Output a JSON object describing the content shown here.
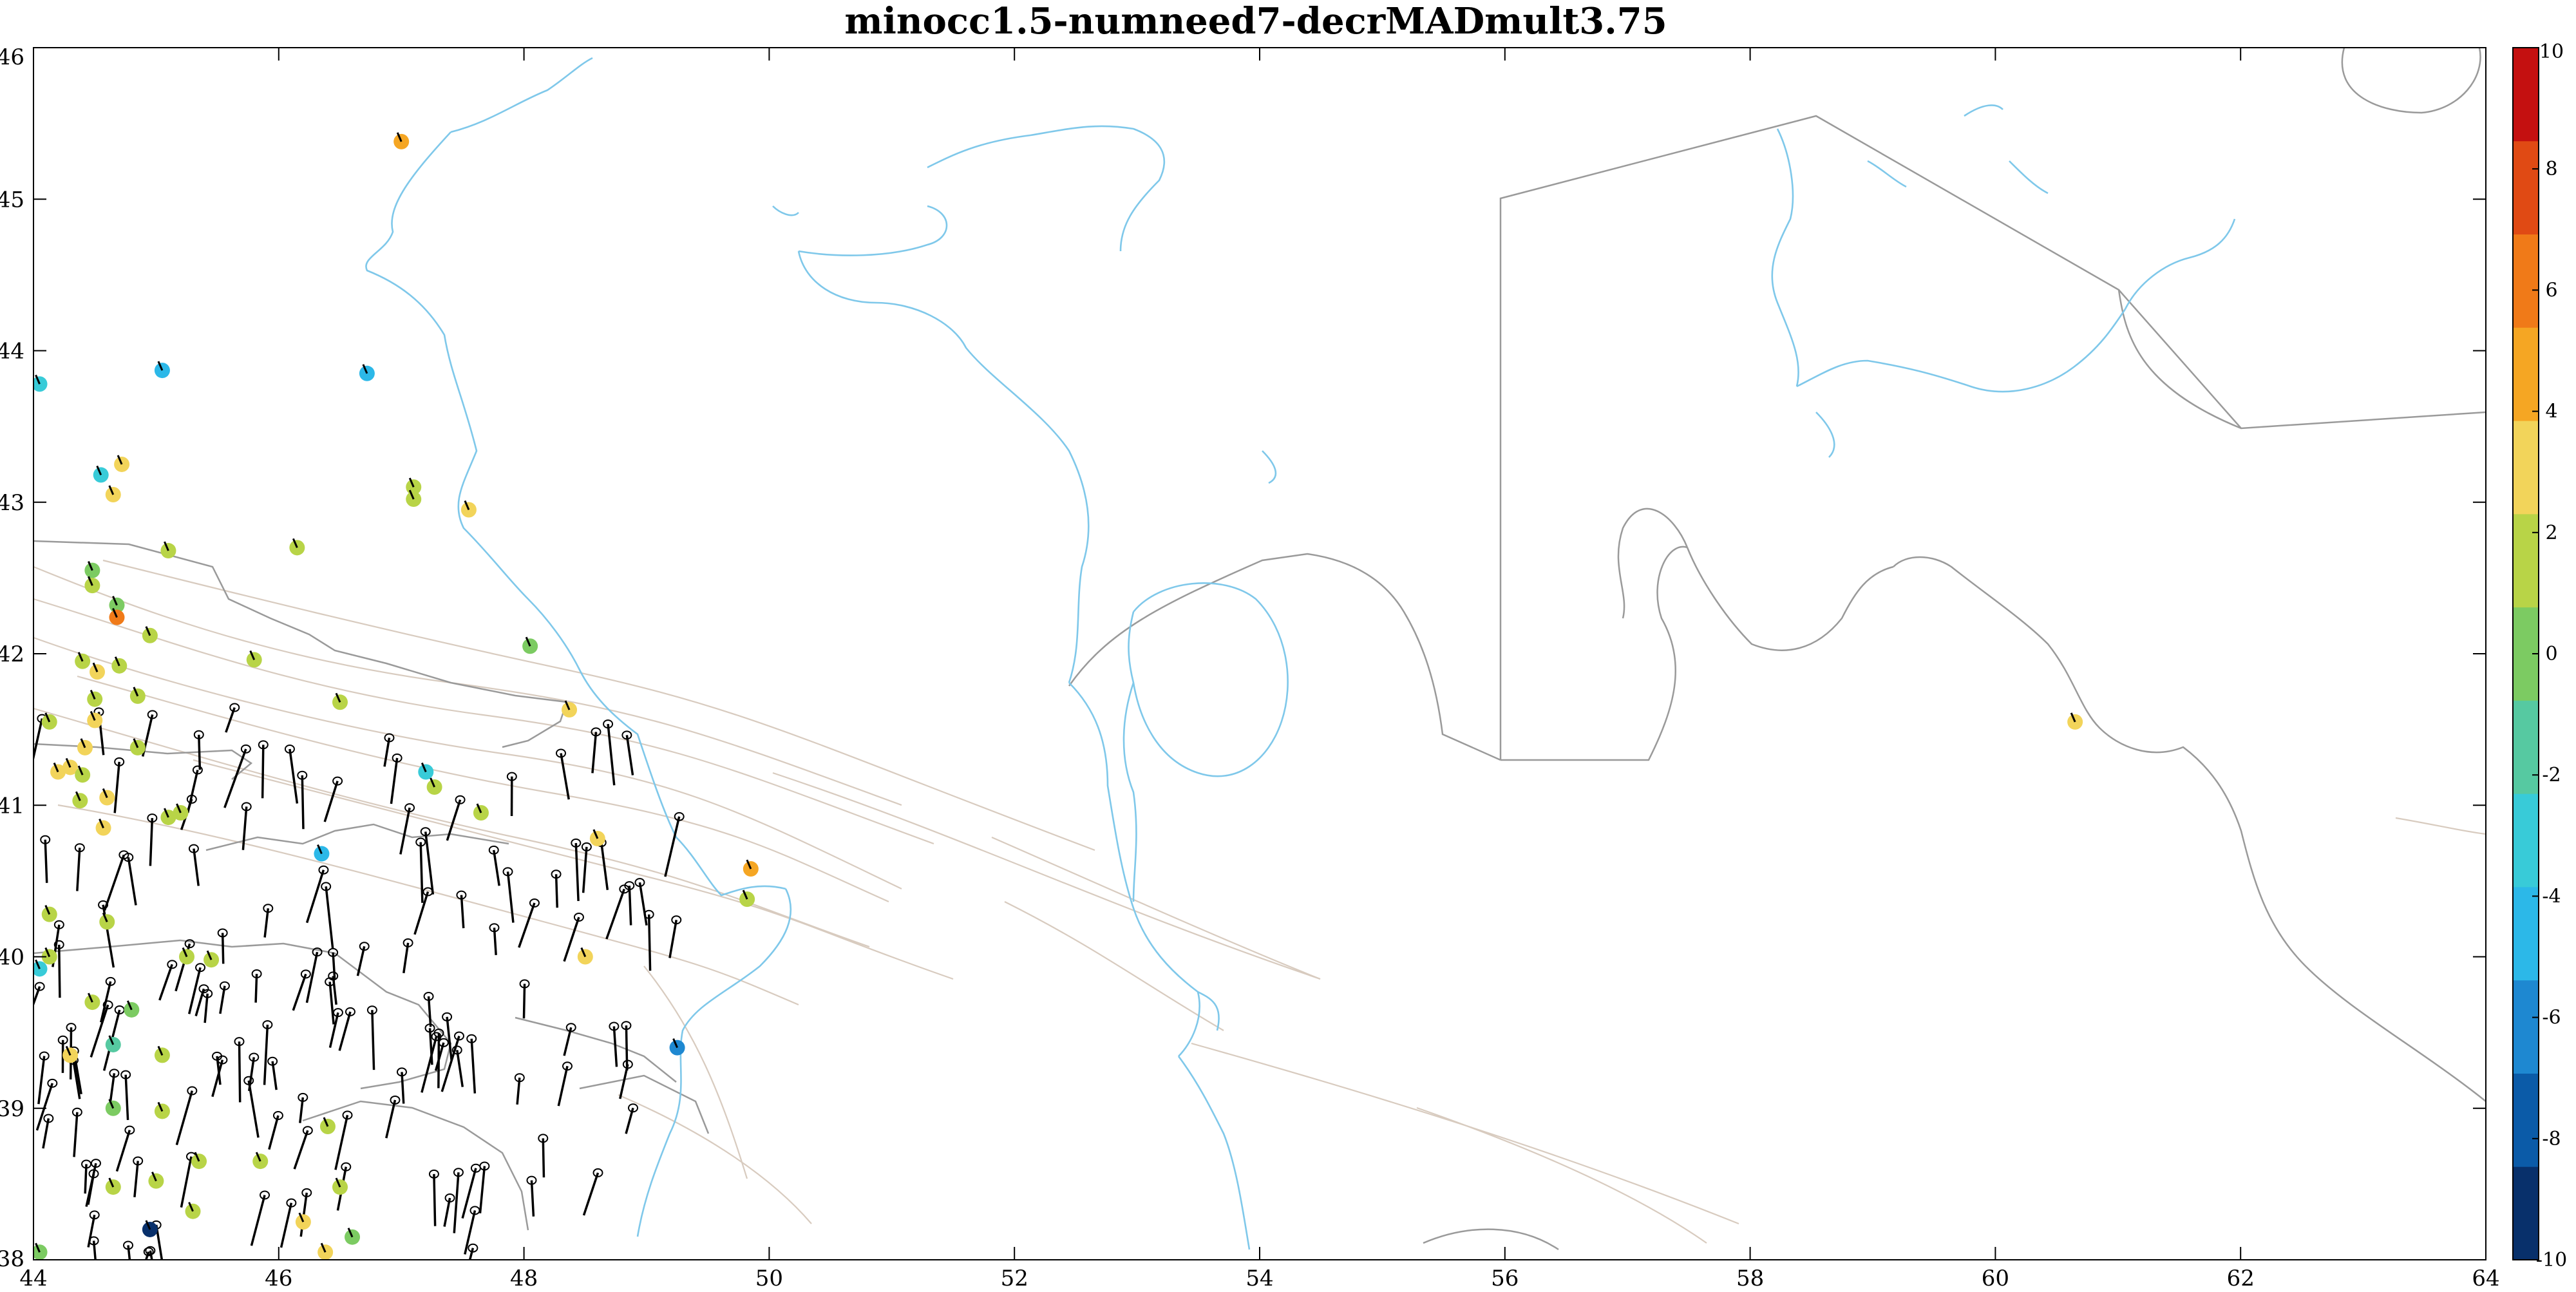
{
  "title": "minocc1.5-numneed7-decrMADmult3.75",
  "map": {
    "type": "scatter",
    "x_axis": {
      "range": [
        44,
        64
      ],
      "ticks": [
        "44",
        "46",
        "48",
        "50",
        "52",
        "54",
        "56",
        "58",
        "60",
        "62",
        "64"
      ]
    },
    "y_axis": {
      "range": [
        38,
        46
      ],
      "ticks": [
        "38",
        "39",
        "40",
        "41",
        "42",
        "43",
        "44",
        "45",
        "46"
      ]
    },
    "colorbar": {
      "range": [
        -10,
        10
      ],
      "ticks": [
        "10",
        "8",
        "6",
        "4",
        "2",
        "0",
        "-2",
        "-4",
        "-6",
        "-8",
        "-10"
      ],
      "colormap": "parula-jet",
      "colors": [
        "#08306b",
        "#0b5ba8",
        "#1e88d1",
        "#2cb8e8",
        "#38cbd8",
        "#56c9a1",
        "#7ccb62",
        "#b8d447",
        "#f2d45a",
        "#f5a623",
        "#f07a18",
        "#e04a14",
        "#c41010"
      ]
    },
    "coastline_color": "#7fc8ea",
    "border_color": "#9a9a9a",
    "station_values": [
      {
        "lon": 44.05,
        "lat": 43.78,
        "value": -3.2
      },
      {
        "lon": 45.05,
        "lat": 43.87,
        "value": -4.5
      },
      {
        "lon": 44.55,
        "lat": 43.18,
        "value": -2.8
      },
      {
        "lon": 44.72,
        "lat": 43.25,
        "value": 2.6
      },
      {
        "lon": 44.65,
        "lat": 43.05,
        "value": 3.2
      },
      {
        "lon": 46.72,
        "lat": 43.85,
        "value": -4.6
      },
      {
        "lon": 47.1,
        "lat": 43.1,
        "value": 1.2
      },
      {
        "lon": 47.1,
        "lat": 43.02,
        "value": 1.5
      },
      {
        "lon": 47.55,
        "lat": 42.95,
        "value": 2.4
      },
      {
        "lon": 47.0,
        "lat": 45.38,
        "value": 5.0
      },
      {
        "lon": 45.1,
        "lat": 42.68,
        "value": 1.0
      },
      {
        "lon": 46.15,
        "lat": 42.7,
        "value": 1.2
      },
      {
        "lon": 44.48,
        "lat": 42.55,
        "value": 0.4
      },
      {
        "lon": 44.48,
        "lat": 42.45,
        "value": 0.8
      },
      {
        "lon": 44.68,
        "lat": 42.32,
        "value": 0.5
      },
      {
        "lon": 44.68,
        "lat": 42.24,
        "value": 6.5
      },
      {
        "lon": 44.95,
        "lat": 42.12,
        "value": 1.1
      },
      {
        "lon": 45.8,
        "lat": 41.96,
        "value": 0.8
      },
      {
        "lon": 44.4,
        "lat": 41.95,
        "value": 1.3
      },
      {
        "lon": 44.52,
        "lat": 41.88,
        "value": 3.0
      },
      {
        "lon": 44.7,
        "lat": 41.92,
        "value": 1.5
      },
      {
        "lon": 44.5,
        "lat": 41.7,
        "value": 1.0
      },
      {
        "lon": 44.5,
        "lat": 41.56,
        "value": 3.5
      },
      {
        "lon": 44.85,
        "lat": 41.72,
        "value": 1.8
      },
      {
        "lon": 44.13,
        "lat": 41.55,
        "value": 1.2
      },
      {
        "lon": 46.5,
        "lat": 41.68,
        "value": 0.9
      },
      {
        "lon": 48.05,
        "lat": 42.05,
        "value": 0.5
      },
      {
        "lon": 48.37,
        "lat": 41.63,
        "value": 3.5
      },
      {
        "lon": 44.85,
        "lat": 41.38,
        "value": 1.5
      },
      {
        "lon": 44.42,
        "lat": 41.38,
        "value": 2.5
      },
      {
        "lon": 44.3,
        "lat": 41.25,
        "value": 2.7
      },
      {
        "lon": 44.4,
        "lat": 41.2,
        "value": 1.8
      },
      {
        "lon": 44.2,
        "lat": 41.22,
        "value": 3.4
      },
      {
        "lon": 44.38,
        "lat": 41.03,
        "value": 1.9
      },
      {
        "lon": 44.6,
        "lat": 41.05,
        "value": 3.0
      },
      {
        "lon": 47.2,
        "lat": 41.22,
        "value": -3.5
      },
      {
        "lon": 47.27,
        "lat": 41.12,
        "value": 1.3
      },
      {
        "lon": 44.57,
        "lat": 40.85,
        "value": 3.2
      },
      {
        "lon": 45.1,
        "lat": 40.92,
        "value": 2.1
      },
      {
        "lon": 45.2,
        "lat": 40.95,
        "value": 1.7
      },
      {
        "lon": 46.35,
        "lat": 40.68,
        "value": -4.0
      },
      {
        "lon": 47.65,
        "lat": 40.95,
        "value": 1.5
      },
      {
        "lon": 48.6,
        "lat": 40.78,
        "value": 2.6
      },
      {
        "lon": 44.13,
        "lat": 40.28,
        "value": 1.0
      },
      {
        "lon": 44.6,
        "lat": 40.23,
        "value": 0.8
      },
      {
        "lon": 44.05,
        "lat": 39.92,
        "value": -2.5
      },
      {
        "lon": 44.13,
        "lat": 40.0,
        "value": 1.0
      },
      {
        "lon": 45.45,
        "lat": 39.98,
        "value": 1.2
      },
      {
        "lon": 45.25,
        "lat": 40.0,
        "value": 1.6
      },
      {
        "lon": 44.48,
        "lat": 39.7,
        "value": 2.0
      },
      {
        "lon": 44.8,
        "lat": 39.65,
        "value": 0.0
      },
      {
        "lon": 48.5,
        "lat": 40.0,
        "value": 3.2
      },
      {
        "lon": 49.85,
        "lat": 40.58,
        "value": 4.5
      },
      {
        "lon": 49.82,
        "lat": 40.38,
        "value": 2.0
      },
      {
        "lon": 44.3,
        "lat": 39.35,
        "value": 2.4
      },
      {
        "lon": 44.65,
        "lat": 39.42,
        "value": -2.2
      },
      {
        "lon": 45.05,
        "lat": 39.35,
        "value": 1.8
      },
      {
        "lon": 49.25,
        "lat": 39.4,
        "value": -6.2
      },
      {
        "lon": 44.65,
        "lat": 39.0,
        "value": 0.6
      },
      {
        "lon": 45.05,
        "lat": 38.98,
        "value": 1.8
      },
      {
        "lon": 46.4,
        "lat": 38.88,
        "value": 1.7
      },
      {
        "lon": 45.0,
        "lat": 38.52,
        "value": 1.9
      },
      {
        "lon": 45.35,
        "lat": 38.65,
        "value": 1.7
      },
      {
        "lon": 44.65,
        "lat": 38.48,
        "value": 0.8
      },
      {
        "lon": 45.85,
        "lat": 38.65,
        "value": 2.0
      },
      {
        "lon": 46.5,
        "lat": 38.48,
        "value": 1.8
      },
      {
        "lon": 45.3,
        "lat": 38.32,
        "value": 1.6
      },
      {
        "lon": 44.95,
        "lat": 38.2,
        "value": -8.8
      },
      {
        "lon": 46.2,
        "lat": 38.25,
        "value": 3.0
      },
      {
        "lon": 46.6,
        "lat": 38.15,
        "value": 0.6
      },
      {
        "lon": 46.38,
        "lat": 38.05,
        "value": 3.8
      },
      {
        "lon": 44.05,
        "lat": 38.05,
        "value": 0.6
      },
      {
        "lon": 60.65,
        "lat": 41.55,
        "value": 2.6
      }
    ]
  }
}
